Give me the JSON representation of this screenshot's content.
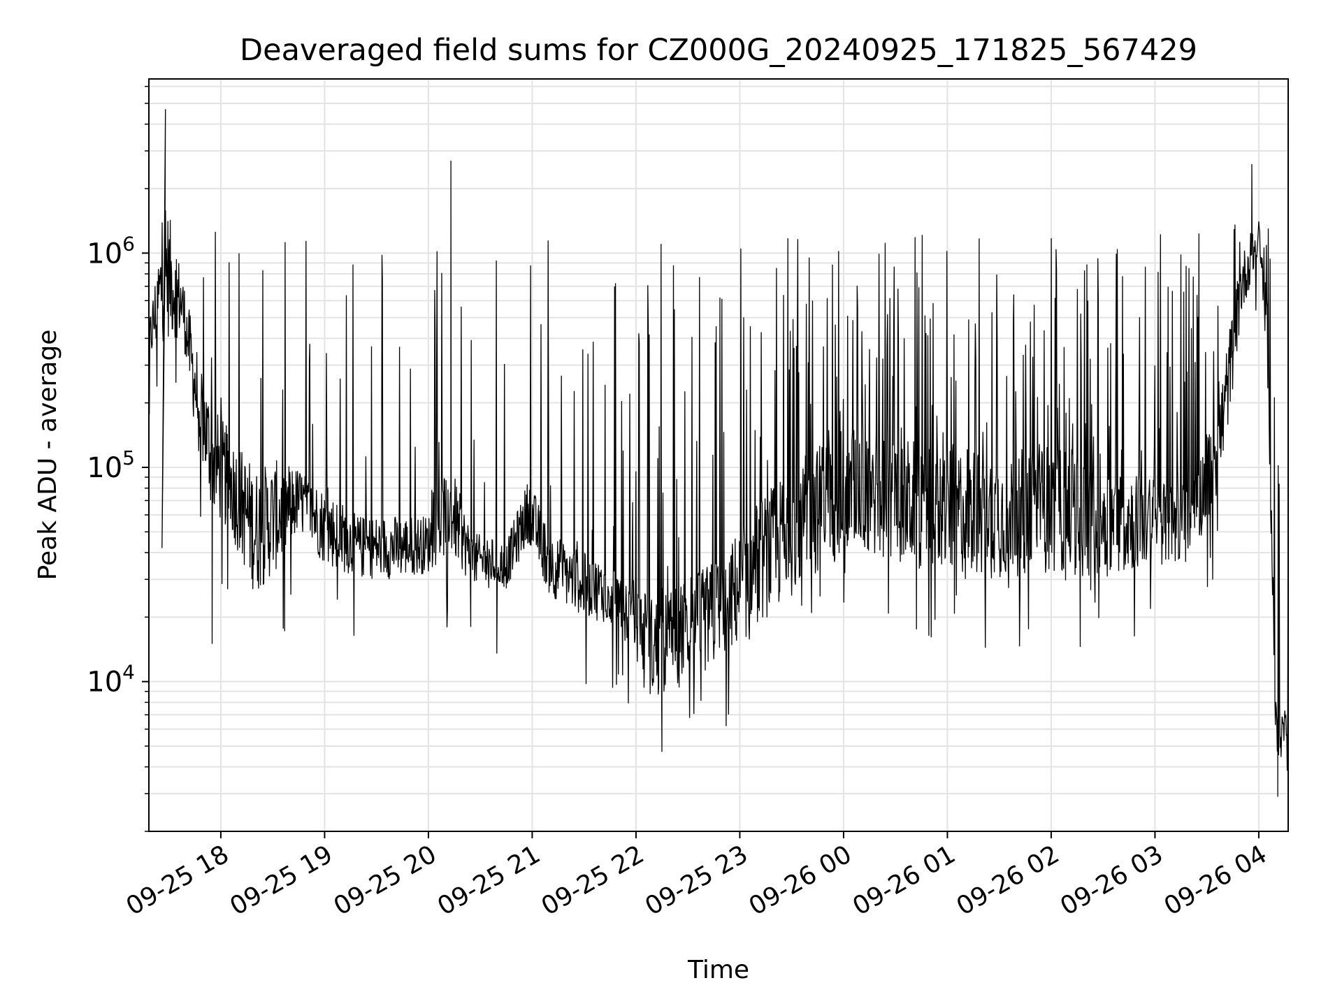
{
  "chart_data": {
    "type": "line",
    "title": "Deaveraged field sums for CZ000G_20240925_171825_567429",
    "xlabel": "Time",
    "ylabel": "Peak ADU - average",
    "y_scale": "log",
    "ylim": [
      2000,
      6500000
    ],
    "xlim": [
      "2024-09-25 17:18:25",
      "2024-09-26 04:17:00"
    ],
    "grid": true,
    "line_color": "#000000",
    "x_ticks": [
      {
        "t": "2024-09-25 18:00",
        "label": "09-25 18"
      },
      {
        "t": "2024-09-25 19:00",
        "label": "09-25 19"
      },
      {
        "t": "2024-09-25 20:00",
        "label": "09-25 20"
      },
      {
        "t": "2024-09-25 21:00",
        "label": "09-25 21"
      },
      {
        "t": "2024-09-25 22:00",
        "label": "09-25 22"
      },
      {
        "t": "2024-09-25 23:00",
        "label": "09-25 23"
      },
      {
        "t": "2024-09-26 00:00",
        "label": "09-26 00"
      },
      {
        "t": "2024-09-26 01:00",
        "label": "09-26 01"
      },
      {
        "t": "2024-09-26 02:00",
        "label": "09-26 02"
      },
      {
        "t": "2024-09-26 03:00",
        "label": "09-26 03"
      },
      {
        "t": "2024-09-26 04:00",
        "label": "09-26 04"
      }
    ],
    "y_ticks": [
      {
        "value": 10000,
        "base": "10",
        "exp": "4"
      },
      {
        "value": 100000,
        "base": "10",
        "exp": "5"
      },
      {
        "value": 1000000,
        "base": "10",
        "exp": "6"
      }
    ],
    "envelope": [
      {
        "t": "2024-09-25 17:18",
        "low": 300000,
        "high": 450000
      },
      {
        "t": "2024-09-25 17:28",
        "low": 400000,
        "high": 1800000
      },
      {
        "t": "2024-09-25 17:38",
        "low": 400000,
        "high": 800000
      },
      {
        "t": "2024-09-25 17:45",
        "low": 150000,
        "high": 400000
      },
      {
        "t": "2024-09-25 17:55",
        "low": 60000,
        "high": 200000
      },
      {
        "t": "2024-09-25 18:05",
        "low": 50000,
        "high": 150000
      },
      {
        "t": "2024-09-25 18:20",
        "low": 25000,
        "high": 100000
      },
      {
        "t": "2024-09-25 18:35",
        "low": 35000,
        "high": 110000
      },
      {
        "t": "2024-09-25 18:45",
        "low": 50000,
        "high": 100000
      },
      {
        "t": "2024-09-25 19:00",
        "low": 35000,
        "high": 80000
      },
      {
        "t": "2024-09-25 19:20",
        "low": 30000,
        "high": 60000
      },
      {
        "t": "2024-09-25 19:40",
        "low": 30000,
        "high": 60000
      },
      {
        "t": "2024-09-25 20:00",
        "low": 32000,
        "high": 60000
      },
      {
        "t": "2024-09-25 20:12",
        "low": 40000,
        "high": 110000
      },
      {
        "t": "2024-09-25 20:25",
        "low": 28000,
        "high": 50000
      },
      {
        "t": "2024-09-25 20:45",
        "low": 27000,
        "high": 45000
      },
      {
        "t": "2024-09-25 20:58",
        "low": 45000,
        "high": 90000
      },
      {
        "t": "2024-09-25 21:10",
        "low": 25000,
        "high": 50000
      },
      {
        "t": "2024-09-25 21:30",
        "low": 20000,
        "high": 40000
      },
      {
        "t": "2024-09-25 21:50",
        "low": 18000,
        "high": 35000
      },
      {
        "t": "2024-09-25 22:10",
        "low": 8000,
        "high": 25000
      },
      {
        "t": "2024-09-25 22:30",
        "low": 10000,
        "high": 30000
      },
      {
        "t": "2024-09-25 22:50",
        "low": 12000,
        "high": 40000
      },
      {
        "t": "2024-09-25 23:10",
        "low": 18000,
        "high": 70000
      },
      {
        "t": "2024-09-25 23:30",
        "low": 25000,
        "high": 100000
      },
      {
        "t": "2024-09-25 23:50",
        "low": 35000,
        "high": 140000
      },
      {
        "t": "2024-09-26 00:10",
        "low": 40000,
        "high": 160000
      },
      {
        "t": "2024-09-26 00:30",
        "low": 35000,
        "high": 140000
      },
      {
        "t": "2024-09-26 01:00",
        "low": 32000,
        "high": 130000
      },
      {
        "t": "2024-09-26 01:30",
        "low": 30000,
        "high": 120000
      },
      {
        "t": "2024-09-26 02:00",
        "low": 32000,
        "high": 130000
      },
      {
        "t": "2024-09-26 02:30",
        "low": 30000,
        "high": 110000
      },
      {
        "t": "2024-09-26 03:00",
        "low": 35000,
        "high": 90000
      },
      {
        "t": "2024-09-26 03:20",
        "low": 35000,
        "high": 80000
      },
      {
        "t": "2024-09-26 03:38",
        "low": 80000,
        "high": 250000
      },
      {
        "t": "2024-09-26 03:50",
        "low": 500000,
        "high": 1000000
      },
      {
        "t": "2024-09-26 04:00",
        "low": 1000000,
        "high": 1400000
      },
      {
        "t": "2024-09-26 04:05",
        "low": 300000,
        "high": 600000
      },
      {
        "t": "2024-09-26 04:10",
        "low": 3500,
        "high": 8000
      },
      {
        "t": "2024-09-26 04:17",
        "low": 6000,
        "high": 7500
      }
    ],
    "notable_points": [
      {
        "t": "2024-09-25 17:28",
        "value": 4700000
      },
      {
        "t": "2024-09-25 17:26",
        "value": 42000
      },
      {
        "t": "2024-09-25 17:55",
        "value": 15000
      },
      {
        "t": "2024-09-25 20:13",
        "value": 2700000
      },
      {
        "t": "2024-09-25 22:15",
        "value": 4700
      },
      {
        "t": "2024-09-26 03:56",
        "value": 2600000
      },
      {
        "t": "2024-09-26 04:11",
        "value": 2900
      }
    ]
  }
}
